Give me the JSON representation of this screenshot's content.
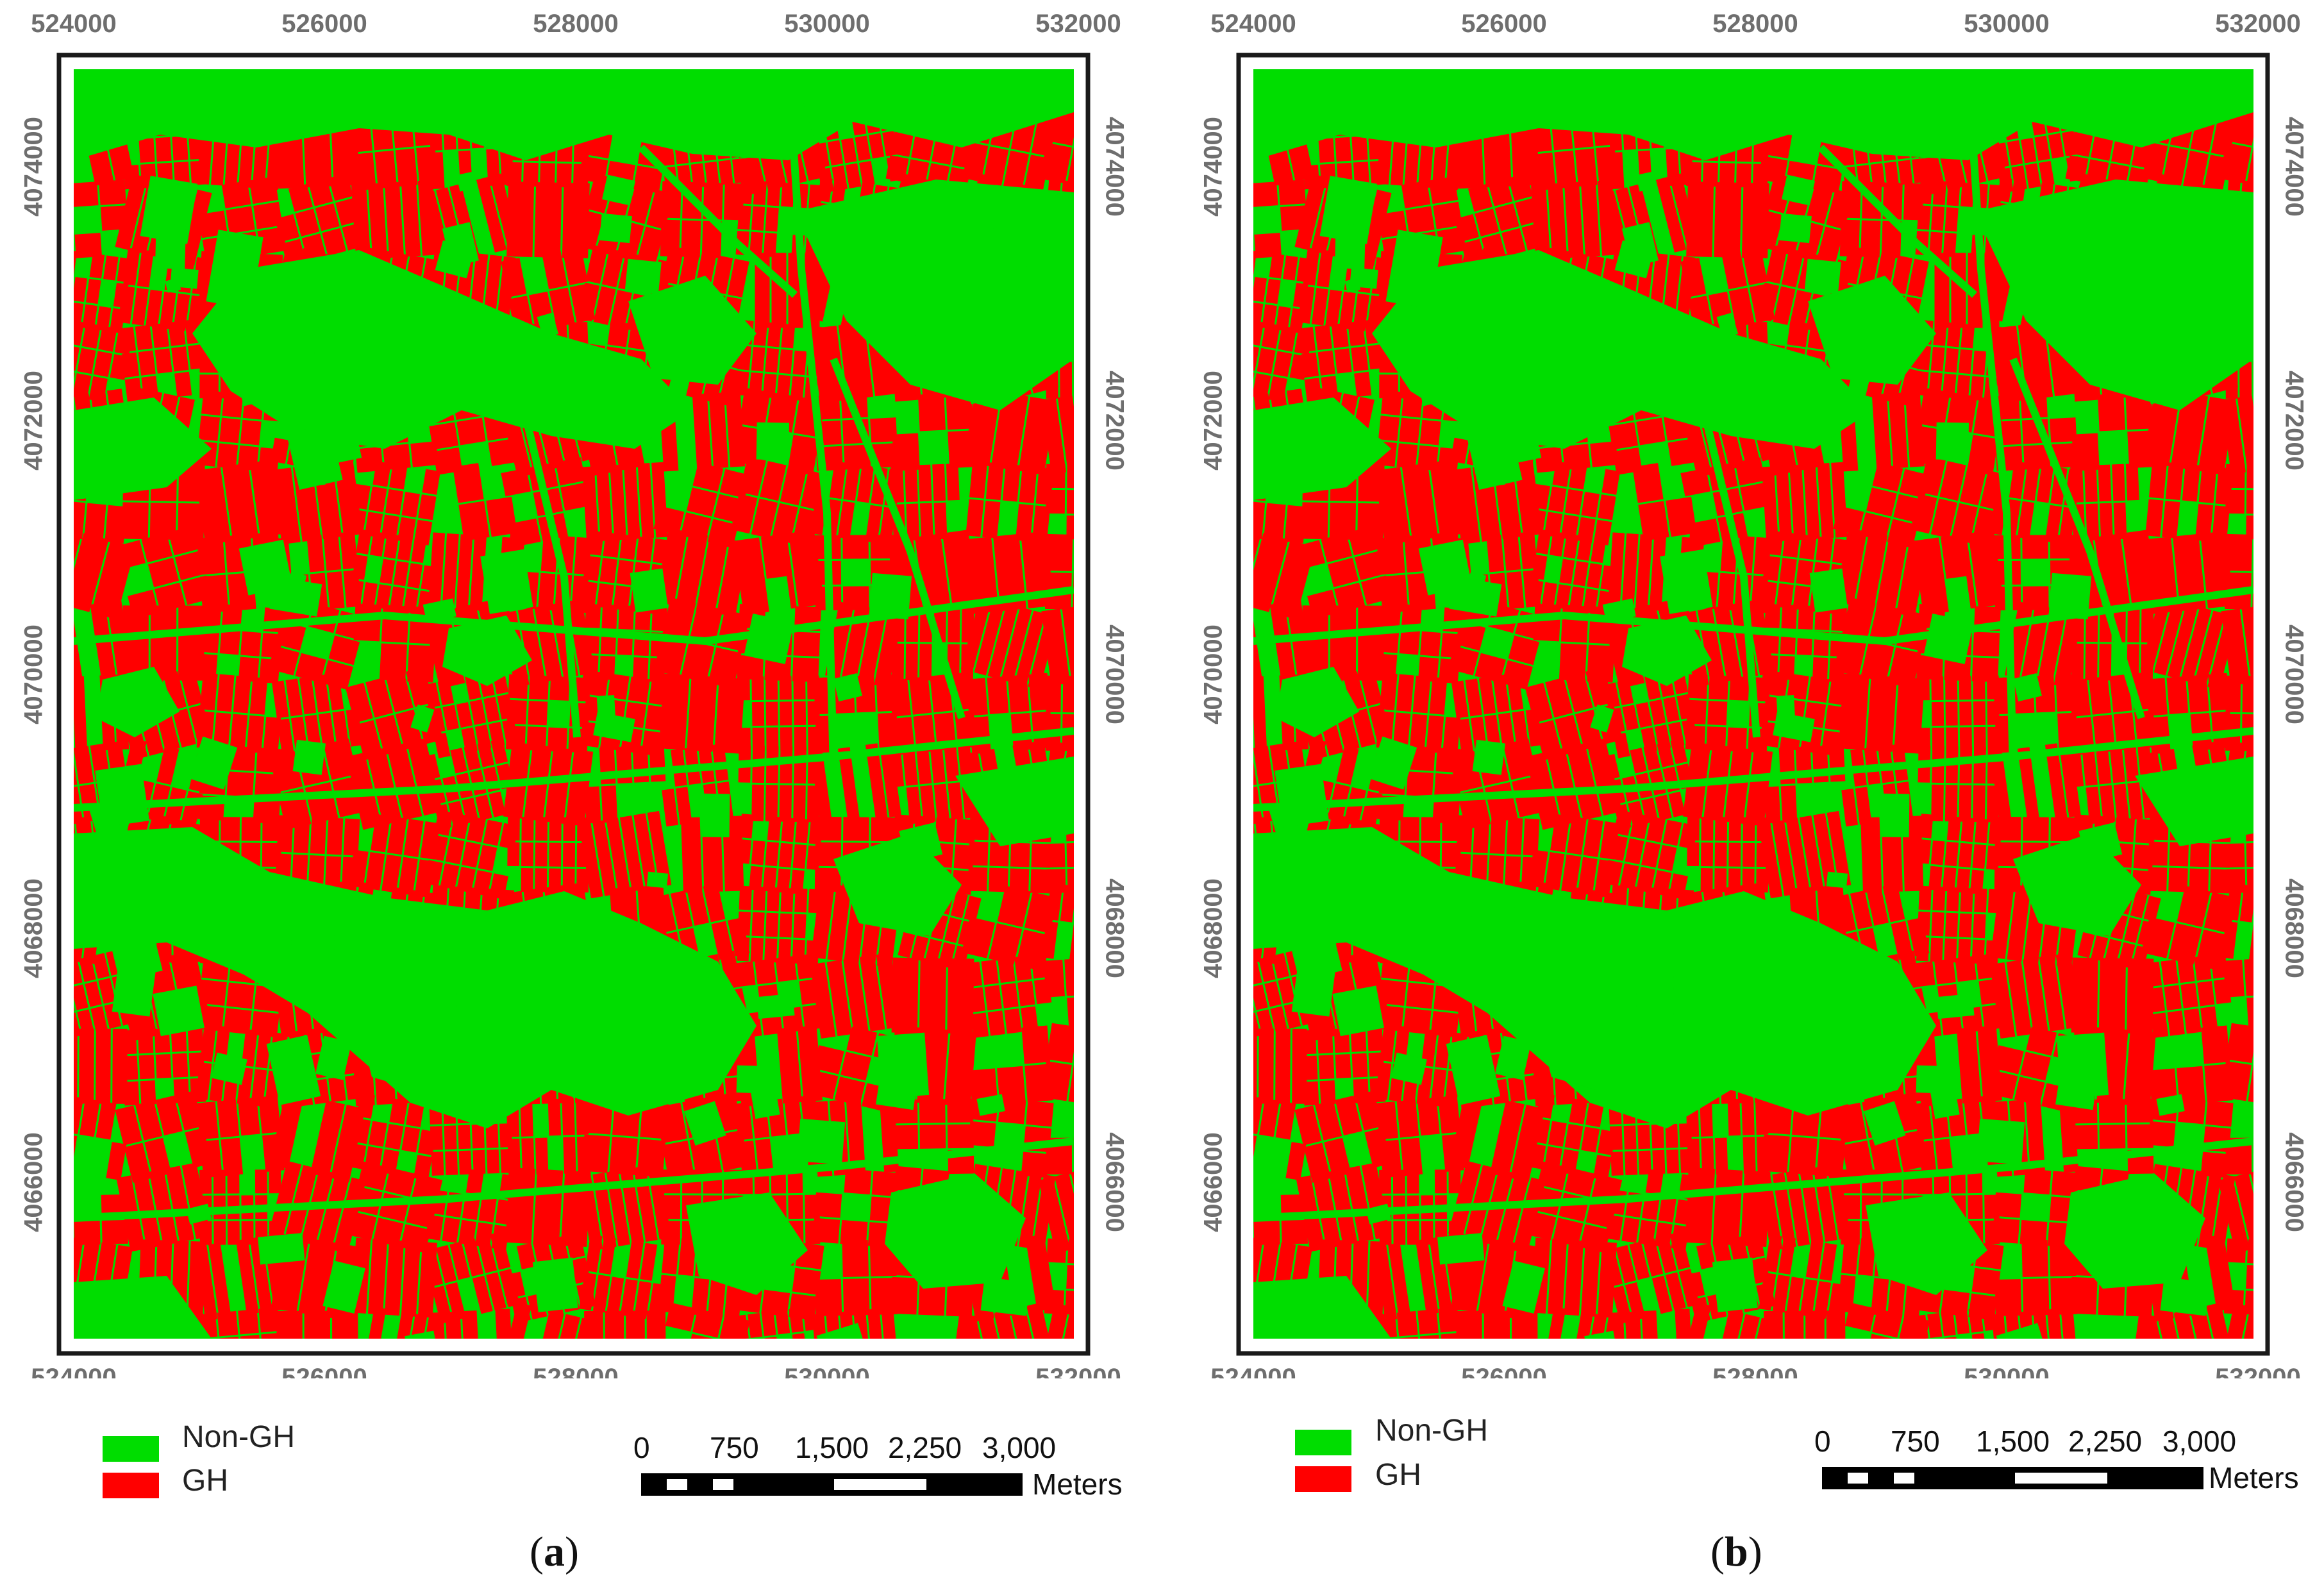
{
  "colors": {
    "non_gh": "#00dd00",
    "gh": "#ff0000",
    "frame": "#1a1a1a",
    "tick_label": "#6e6e6e"
  },
  "axes": {
    "x_ticks": [
      "524000",
      "526000",
      "528000",
      "530000",
      "532000"
    ],
    "y_ticks": [
      "4074000",
      "4072000",
      "4070000",
      "4068000",
      "4066000"
    ]
  },
  "legend": {
    "items": [
      {
        "label": "Non-GH",
        "color": "#00dd00"
      },
      {
        "label": "GH",
        "color": "#ff0000"
      }
    ]
  },
  "scale_bar": {
    "labels": [
      "0",
      "750",
      "1,500",
      "2,250",
      "3,000"
    ],
    "unit": "Meters"
  },
  "panels": [
    {
      "caption_open": "(",
      "caption_letter": "a",
      "caption_close": ")"
    },
    {
      "caption_open": "(",
      "caption_letter": "b",
      "caption_close": ")"
    }
  ]
}
